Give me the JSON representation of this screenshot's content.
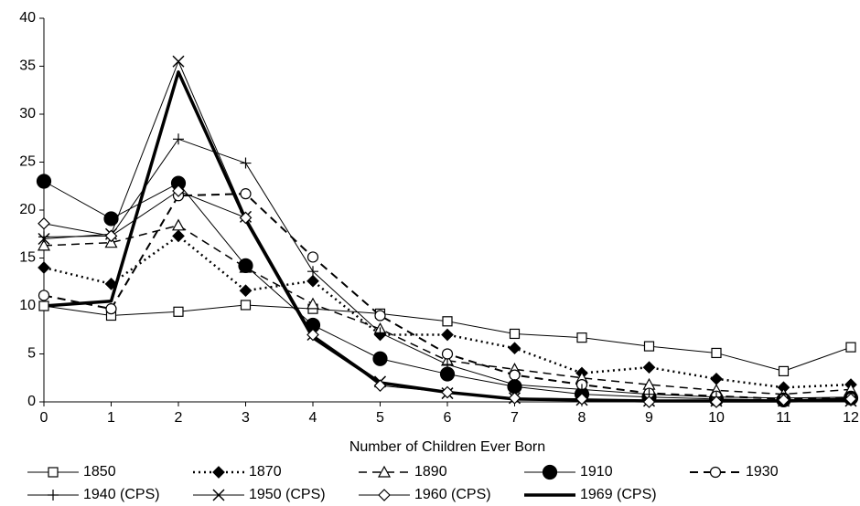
{
  "chart_data": {
    "type": "line",
    "x_label": "Number of Children Ever Born",
    "x": [
      0,
      1,
      2,
      3,
      4,
      5,
      6,
      7,
      8,
      9,
      10,
      11,
      12
    ],
    "xlim": [
      0,
      12
    ],
    "xticks": [
      0,
      1,
      2,
      3,
      4,
      5,
      6,
      7,
      8,
      9,
      10,
      11,
      12
    ],
    "ylim": [
      0,
      40
    ],
    "yticks": [
      0,
      5,
      10,
      15,
      20,
      25,
      30,
      35,
      40
    ],
    "grid": false,
    "legend": "bottom",
    "series": [
      {
        "name": "1850",
        "color": "#000000",
        "dash": "solid",
        "width": 1,
        "marker": "square-open",
        "values": [
          10,
          9,
          9.4,
          10.1,
          9.7,
          9.2,
          8.4,
          7.1,
          6.7,
          5.8,
          5.1,
          3.2,
          5.7
        ]
      },
      {
        "name": "1870",
        "color": "#000000",
        "dash": "dotted",
        "width": 2.5,
        "marker": "diamond-filled",
        "values": [
          14,
          12.3,
          17.3,
          11.6,
          12.6,
          7,
          7,
          5.6,
          3,
          3.6,
          2.4,
          1.5,
          1.8
        ]
      },
      {
        "name": "1890",
        "color": "#000000",
        "dash": "dashed",
        "width": 1.5,
        "marker": "triangle-open",
        "values": [
          16.3,
          16.6,
          18.4,
          14,
          10.2,
          7.6,
          4.3,
          3.4,
          2.5,
          1.8,
          1.2,
          0.8,
          1.3
        ]
      },
      {
        "name": "1910",
        "color": "#000000",
        "dash": "solid",
        "width": 1,
        "marker": "circle-filled",
        "values": [
          23,
          19.1,
          22.8,
          14.2,
          8,
          4.5,
          2.9,
          1.6,
          0.8,
          0.5,
          0.3,
          0.2,
          0.4
        ]
      },
      {
        "name": "1930",
        "color": "#000000",
        "dash": "dashed",
        "width": 2,
        "marker": "circle-open",
        "values": [
          11.1,
          9.7,
          21.5,
          21.7,
          15.1,
          9,
          5,
          2.8,
          1.8,
          0.9,
          0.6,
          0.3,
          0.4
        ]
      },
      {
        "name": "1940 (CPS)",
        "color": "#000000",
        "dash": "solid",
        "width": 1,
        "marker": "plus",
        "values": [
          17.2,
          17.3,
          27.4,
          24.9,
          13.6,
          7.2,
          3.9,
          1.8,
          1.3,
          0.8,
          0.5,
          0.4,
          0.5
        ]
      },
      {
        "name": "1950 (CPS)",
        "color": "#000000",
        "dash": "solid",
        "width": 1,
        "marker": "cross",
        "values": [
          17,
          17.5,
          35.5,
          19.3,
          7,
          2.1,
          0.9,
          0.4,
          0.2,
          0.1,
          0.1,
          0.1,
          0.1
        ]
      },
      {
        "name": "1960 (CPS)",
        "color": "#000000",
        "dash": "solid",
        "width": 1,
        "marker": "diamond-open",
        "values": [
          18.6,
          17.3,
          22,
          19.2,
          7,
          1.7,
          1,
          0.4,
          0.3,
          0,
          0,
          0.2,
          0.3
        ]
      },
      {
        "name": "1969 (CPS)",
        "color": "#000000",
        "dash": "solid",
        "width": 3.5,
        "marker": "none",
        "values": [
          10,
          10.5,
          34.4,
          19,
          6.7,
          2,
          1,
          0.3,
          0.2,
          0.1,
          0.1,
          0.1,
          0.2
        ]
      }
    ]
  }
}
